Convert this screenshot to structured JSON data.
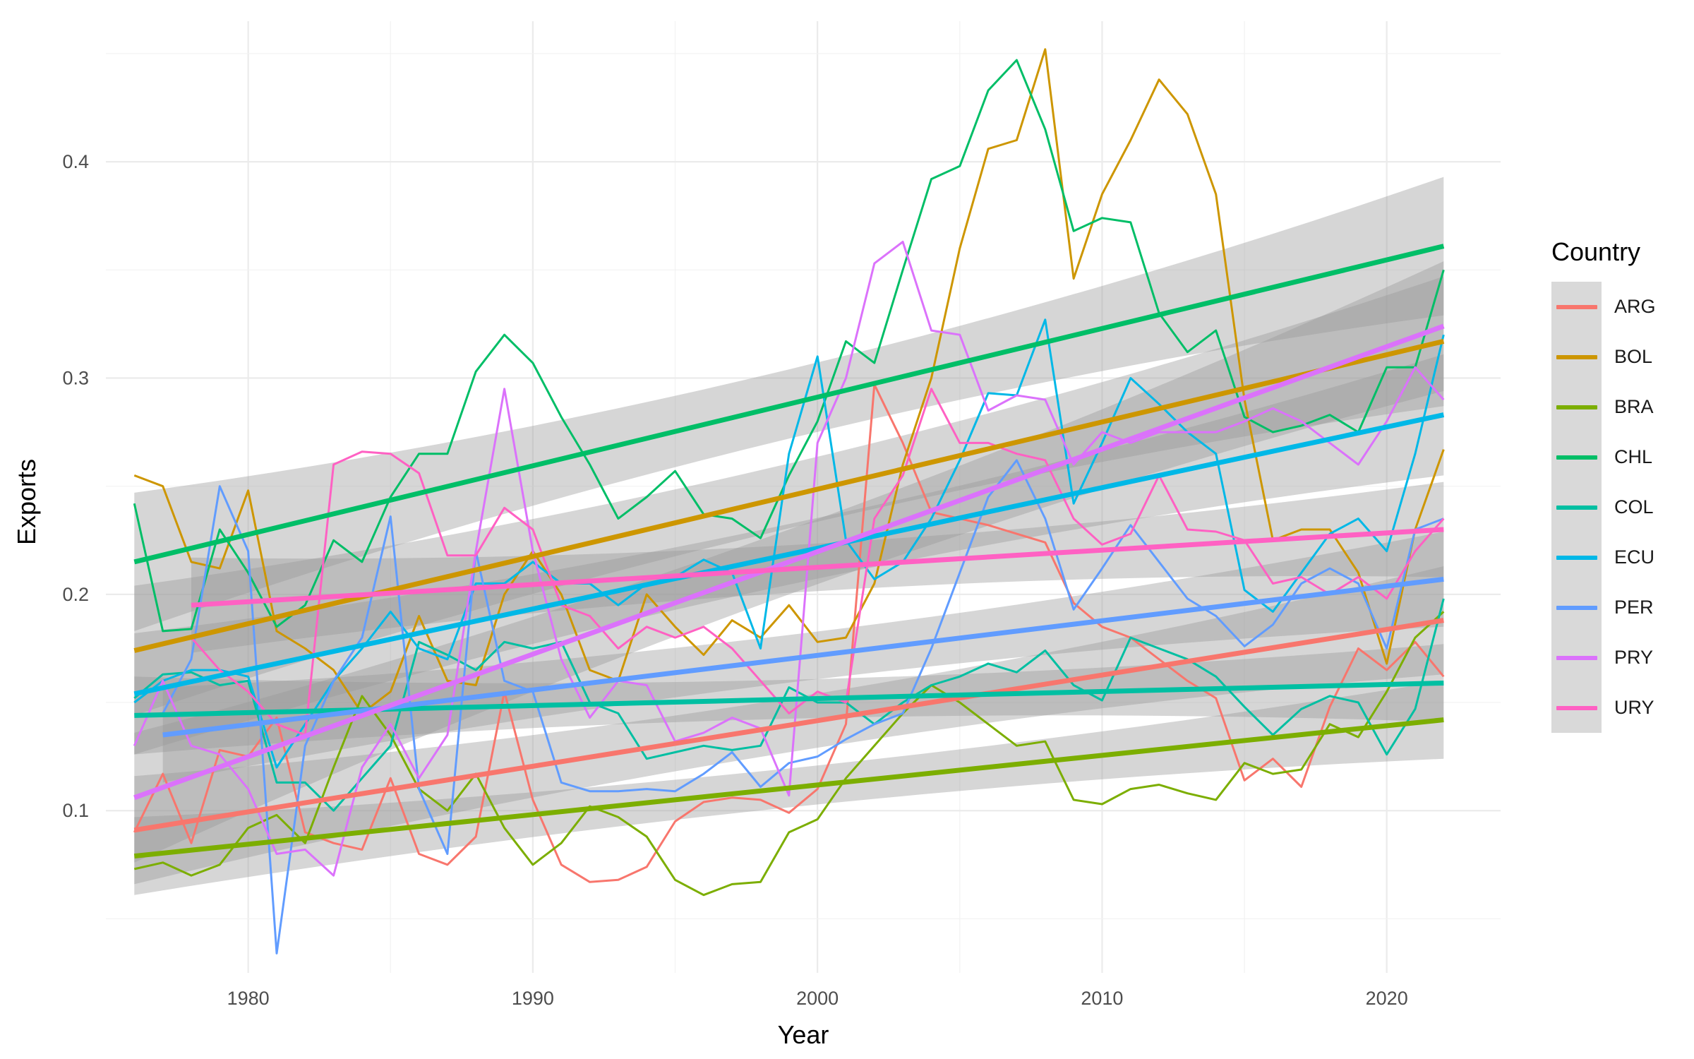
{
  "chart_data": {
    "type": "line",
    "title": "",
    "xlabel": "Year",
    "ylabel": "Exports",
    "xlim": [
      1975,
      2024
    ],
    "ylim": [
      0.025,
      0.465
    ],
    "x_ticks": [
      1980,
      1990,
      2000,
      2010,
      2020
    ],
    "y_ticks": [
      0.1,
      0.2,
      0.3,
      0.4
    ],
    "x_tick_labels": [
      "1980",
      "1990",
      "2000",
      "2010",
      "2020"
    ],
    "y_tick_labels": [
      "0.1",
      "0.2",
      "0.3",
      "0.4"
    ],
    "grid": true,
    "legend": {
      "title": "Country",
      "position": "right"
    },
    "overlay": "linear trend line with shaded confidence band per series",
    "series": [
      {
        "name": "ARG",
        "color": "#F8766D",
        "x": [
          1976,
          1977,
          1978,
          1979,
          1980,
          1981,
          1982,
          1983,
          1984,
          1985,
          1986,
          1987,
          1988,
          1989,
          1990,
          1991,
          1992,
          1993,
          1994,
          1995,
          1996,
          1997,
          1998,
          1999,
          2000,
          2001,
          2002,
          2003,
          2004,
          2005,
          2006,
          2007,
          2008,
          2009,
          2010,
          2011,
          2012,
          2013,
          2014,
          2015,
          2016,
          2017,
          2018,
          2019,
          2020,
          2021,
          2022
        ],
        "values": [
          0.09,
          0.117,
          0.085,
          0.128,
          0.125,
          0.143,
          0.09,
          0.085,
          0.082,
          0.115,
          0.08,
          0.075,
          0.088,
          0.155,
          0.105,
          0.075,
          0.067,
          0.068,
          0.074,
          0.095,
          0.104,
          0.106,
          0.105,
          0.099,
          0.11,
          0.14,
          0.297,
          0.27,
          0.238,
          0.235,
          0.232,
          0.228,
          0.224,
          0.196,
          0.185,
          0.18,
          0.17,
          0.16,
          0.152,
          0.114,
          0.124,
          0.111,
          0.148,
          0.175,
          0.165,
          0.178,
          0.162
        ],
        "trend": [
          0.091,
          0.188
        ],
        "band": 0.025
      },
      {
        "name": "BOL",
        "color": "#CD9600",
        "x": [
          1976,
          1977,
          1978,
          1979,
          1980,
          1981,
          1982,
          1983,
          1984,
          1985,
          1986,
          1987,
          1988,
          1989,
          1990,
          1991,
          1992,
          1993,
          1994,
          1995,
          1996,
          1997,
          1998,
          1999,
          2000,
          2001,
          2002,
          2003,
          2004,
          2005,
          2006,
          2007,
          2008,
          2009,
          2010,
          2011,
          2012,
          2013,
          2014,
          2015,
          2016,
          2017,
          2018,
          2019,
          2020,
          2021,
          2022
        ],
        "values": [
          0.255,
          0.25,
          0.215,
          0.212,
          0.248,
          0.183,
          0.175,
          0.165,
          0.145,
          0.155,
          0.19,
          0.16,
          0.158,
          0.2,
          0.22,
          0.2,
          0.165,
          0.16,
          0.2,
          0.185,
          0.172,
          0.188,
          0.18,
          0.195,
          0.178,
          0.18,
          0.205,
          0.26,
          0.3,
          0.36,
          0.406,
          0.41,
          0.452,
          0.346,
          0.385,
          0.41,
          0.438,
          0.422,
          0.385,
          0.29,
          0.225,
          0.23,
          0.23,
          0.21,
          0.168,
          0.23,
          0.267
        ],
        "trend": [
          0.174,
          0.317
        ],
        "band": 0.03
      },
      {
        "name": "BRA",
        "color": "#7CAE00",
        "x": [
          1976,
          1977,
          1978,
          1979,
          1980,
          1981,
          1982,
          1983,
          1984,
          1985,
          1986,
          1987,
          1988,
          1989,
          1990,
          1991,
          1992,
          1993,
          1994,
          1995,
          1996,
          1997,
          1998,
          1999,
          2000,
          2001,
          2002,
          2003,
          2004,
          2005,
          2006,
          2007,
          2008,
          2009,
          2010,
          2011,
          2012,
          2013,
          2014,
          2015,
          2016,
          2017,
          2018,
          2019,
          2020,
          2021,
          2022
        ],
        "values": [
          0.073,
          0.076,
          0.07,
          0.075,
          0.092,
          0.098,
          0.085,
          0.12,
          0.153,
          0.135,
          0.11,
          0.1,
          0.117,
          0.092,
          0.075,
          0.085,
          0.102,
          0.097,
          0.088,
          0.068,
          0.061,
          0.066,
          0.067,
          0.09,
          0.096,
          0.115,
          0.13,
          0.145,
          0.158,
          0.15,
          0.14,
          0.13,
          0.132,
          0.105,
          0.103,
          0.11,
          0.112,
          0.108,
          0.105,
          0.122,
          0.117,
          0.119,
          0.14,
          0.134,
          0.155,
          0.18,
          0.192
        ],
        "trend": [
          0.079,
          0.142
        ],
        "band": 0.018
      },
      {
        "name": "CHL",
        "color": "#00BE67",
        "x": [
          1976,
          1977,
          1978,
          1979,
          1980,
          1981,
          1982,
          1983,
          1984,
          1985,
          1986,
          1987,
          1988,
          1989,
          1990,
          1991,
          1992,
          1993,
          1994,
          1995,
          1996,
          1997,
          1998,
          1999,
          2000,
          2001,
          2002,
          2003,
          2004,
          2005,
          2006,
          2007,
          2008,
          2009,
          2010,
          2011,
          2012,
          2013,
          2014,
          2015,
          2016,
          2017,
          2018,
          2019,
          2020,
          2021,
          2022
        ],
        "values": [
          0.242,
          0.183,
          0.184,
          0.23,
          0.21,
          0.185,
          0.195,
          0.225,
          0.215,
          0.245,
          0.265,
          0.265,
          0.303,
          0.32,
          0.307,
          0.282,
          0.26,
          0.235,
          0.245,
          0.257,
          0.237,
          0.235,
          0.226,
          0.255,
          0.28,
          0.317,
          0.307,
          0.35,
          0.392,
          0.398,
          0.433,
          0.447,
          0.415,
          0.368,
          0.374,
          0.372,
          0.33,
          0.312,
          0.322,
          0.282,
          0.275,
          0.278,
          0.283,
          0.275,
          0.305,
          0.305,
          0.35
        ],
        "trend": [
          0.215,
          0.361
        ],
        "band": 0.032
      },
      {
        "name": "COL",
        "color": "#00BFA2",
        "x": [
          1976,
          1977,
          1978,
          1979,
          1980,
          1981,
          1982,
          1983,
          1984,
          1985,
          1986,
          1987,
          1988,
          1989,
          1990,
          1991,
          1992,
          1993,
          1994,
          1995,
          1996,
          1997,
          1998,
          1999,
          2000,
          2001,
          2002,
          2003,
          2004,
          2005,
          2006,
          2007,
          2008,
          2009,
          2010,
          2011,
          2012,
          2013,
          2014,
          2015,
          2016,
          2017,
          2018,
          2019,
          2020,
          2021,
          2022
        ],
        "values": [
          0.152,
          0.163,
          0.164,
          0.158,
          0.16,
          0.113,
          0.113,
          0.1,
          0.115,
          0.13,
          0.178,
          0.172,
          0.165,
          0.178,
          0.175,
          0.178,
          0.15,
          0.145,
          0.124,
          0.127,
          0.13,
          0.128,
          0.13,
          0.157,
          0.15,
          0.15,
          0.14,
          0.15,
          0.158,
          0.162,
          0.168,
          0.164,
          0.174,
          0.158,
          0.151,
          0.18,
          0.175,
          0.17,
          0.162,
          0.148,
          0.135,
          0.147,
          0.153,
          0.15,
          0.126,
          0.147,
          0.198
        ],
        "trend": [
          0.144,
          0.159
        ],
        "band": 0.018
      },
      {
        "name": "ECU",
        "color": "#00B8E7",
        "x": [
          1976,
          1977,
          1978,
          1979,
          1980,
          1981,
          1982,
          1983,
          1984,
          1985,
          1986,
          1987,
          1988,
          1989,
          1990,
          1991,
          1992,
          1993,
          1994,
          1995,
          1996,
          1997,
          1998,
          1999,
          2000,
          2001,
          2002,
          2003,
          2004,
          2005,
          2006,
          2007,
          2008,
          2009,
          2010,
          2011,
          2012,
          2013,
          2014,
          2015,
          2016,
          2017,
          2018,
          2019,
          2020,
          2021,
          2022
        ],
        "values": [
          0.15,
          0.16,
          0.165,
          0.165,
          0.162,
          0.12,
          0.14,
          0.16,
          0.175,
          0.192,
          0.175,
          0.17,
          0.205,
          0.205,
          0.215,
          0.205,
          0.205,
          0.195,
          0.205,
          0.208,
          0.216,
          0.21,
          0.175,
          0.265,
          0.31,
          0.225,
          0.207,
          0.215,
          0.235,
          0.262,
          0.293,
          0.292,
          0.327,
          0.242,
          0.27,
          0.3,
          0.288,
          0.275,
          0.265,
          0.202,
          0.192,
          0.21,
          0.228,
          0.235,
          0.22,
          0.265,
          0.32
        ],
        "trend": [
          0.154,
          0.283
        ],
        "band": 0.028
      },
      {
        "name": "PER",
        "color": "#619CFF",
        "x": [
          1977,
          1978,
          1979,
          1980,
          1981,
          1982,
          1983,
          1984,
          1985,
          1986,
          1987,
          1988,
          1989,
          1990,
          1991,
          1992,
          1993,
          1994,
          1995,
          1996,
          1997,
          1998,
          1999,
          2000,
          2001,
          2002,
          2003,
          2004,
          2005,
          2006,
          2007,
          2008,
          2009,
          2010,
          2011,
          2012,
          2013,
          2014,
          2015,
          2016,
          2017,
          2018,
          2019,
          2020,
          2021,
          2022
        ],
        "values": [
          0.145,
          0.17,
          0.25,
          0.22,
          0.034,
          0.13,
          0.16,
          0.18,
          0.236,
          0.11,
          0.08,
          0.22,
          0.16,
          0.155,
          0.113,
          0.109,
          0.109,
          0.11,
          0.109,
          0.117,
          0.127,
          0.111,
          0.122,
          0.125,
          0.133,
          0.14,
          0.145,
          0.175,
          0.21,
          0.245,
          0.262,
          0.235,
          0.193,
          0.212,
          0.232,
          0.215,
          0.198,
          0.19,
          0.176,
          0.186,
          0.205,
          0.212,
          0.205,
          0.175,
          0.23,
          0.235
        ],
        "trend": [
          0.135,
          0.207
        ],
        "band": 0.022
      },
      {
        "name": "PRY",
        "color": "#DB72FB",
        "x": [
          1976,
          1977,
          1978,
          1979,
          1980,
          1981,
          1982,
          1983,
          1984,
          1985,
          1986,
          1987,
          1988,
          1989,
          1990,
          1991,
          1992,
          1993,
          1994,
          1995,
          1996,
          1997,
          1998,
          1999,
          2000,
          2001,
          2002,
          2003,
          2004,
          2005,
          2006,
          2007,
          2008,
          2009,
          2010,
          2011,
          2012,
          2013,
          2014,
          2015,
          2016,
          2017,
          2018,
          2019,
          2020,
          2021,
          2022
        ],
        "values": [
          0.13,
          0.16,
          0.13,
          0.126,
          0.11,
          0.08,
          0.082,
          0.07,
          0.12,
          0.14,
          0.115,
          0.135,
          0.22,
          0.295,
          0.22,
          0.17,
          0.143,
          0.16,
          0.158,
          0.132,
          0.136,
          0.143,
          0.138,
          0.107,
          0.27,
          0.3,
          0.353,
          0.363,
          0.322,
          0.32,
          0.285,
          0.292,
          0.29,
          0.26,
          0.275,
          0.27,
          0.275,
          0.275,
          0.275,
          0.28,
          0.286,
          0.28,
          0.27,
          0.26,
          0.28,
          0.305,
          0.29
        ],
        "trend": [
          0.106,
          0.324
        ],
        "band": 0.03
      },
      {
        "name": "URY",
        "color": "#FF61C3",
        "x": [
          1978,
          1979,
          1980,
          1981,
          1982,
          1983,
          1984,
          1985,
          1986,
          1987,
          1988,
          1989,
          1990,
          1991,
          1992,
          1993,
          1994,
          1995,
          1996,
          1997,
          1998,
          1999,
          2000,
          2001,
          2002,
          2003,
          2004,
          2005,
          2006,
          2007,
          2008,
          2009,
          2010,
          2011,
          2012,
          2013,
          2014,
          2015,
          2016,
          2017,
          2018,
          2019,
          2020,
          2021,
          2022
        ],
        "values": [
          0.18,
          0.165,
          0.155,
          0.14,
          0.135,
          0.26,
          0.266,
          0.265,
          0.256,
          0.218,
          0.218,
          0.24,
          0.23,
          0.195,
          0.19,
          0.175,
          0.185,
          0.18,
          0.185,
          0.175,
          0.16,
          0.145,
          0.155,
          0.15,
          0.235,
          0.255,
          0.295,
          0.27,
          0.27,
          0.265,
          0.262,
          0.235,
          0.223,
          0.228,
          0.255,
          0.23,
          0.229,
          0.225,
          0.205,
          0.208,
          0.2,
          0.208,
          0.198,
          0.22,
          0.235
        ],
        "trend": [
          0.195,
          0.23
        ],
        "band": 0.022
      }
    ]
  }
}
